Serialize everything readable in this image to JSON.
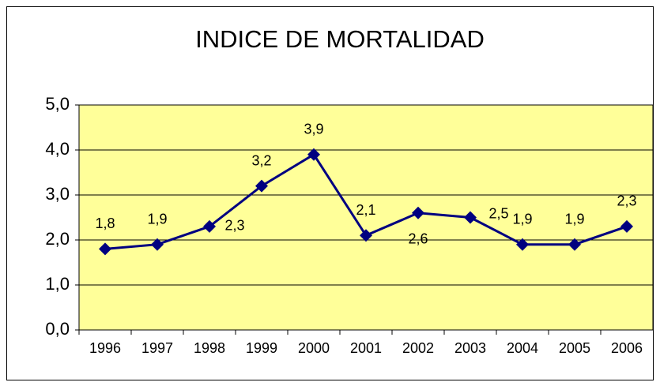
{
  "chart_data": {
    "type": "line",
    "title": "INDICE DE MORTALIDAD",
    "categories": [
      "1996",
      "1997",
      "1998",
      "1999",
      "2000",
      "2001",
      "2002",
      "2003",
      "2004",
      "2005",
      "2006"
    ],
    "series": [
      {
        "color": "#000080",
        "values": [
          1.8,
          1.9,
          2.3,
          3.2,
          3.9,
          2.1,
          2.6,
          2.5,
          1.9,
          1.9,
          2.3
        ],
        "value_labels": [
          "1,8",
          "1,9",
          "2,3",
          "3,2",
          "3,9",
          "2,1",
          "2,6",
          "2,5",
          "1,9",
          "1,9",
          "2,3"
        ]
      }
    ],
    "ylim": [
      0,
      5
    ],
    "yticks": [
      {
        "value": 0,
        "label": "0,0"
      },
      {
        "value": 1,
        "label": "1,0"
      },
      {
        "value": 2,
        "label": "2,0"
      },
      {
        "value": 3,
        "label": "3,0"
      },
      {
        "value": 4,
        "label": "4,0"
      },
      {
        "value": 5,
        "label": "5,0"
      }
    ],
    "grid": true,
    "plot_background": "#ffff99"
  }
}
